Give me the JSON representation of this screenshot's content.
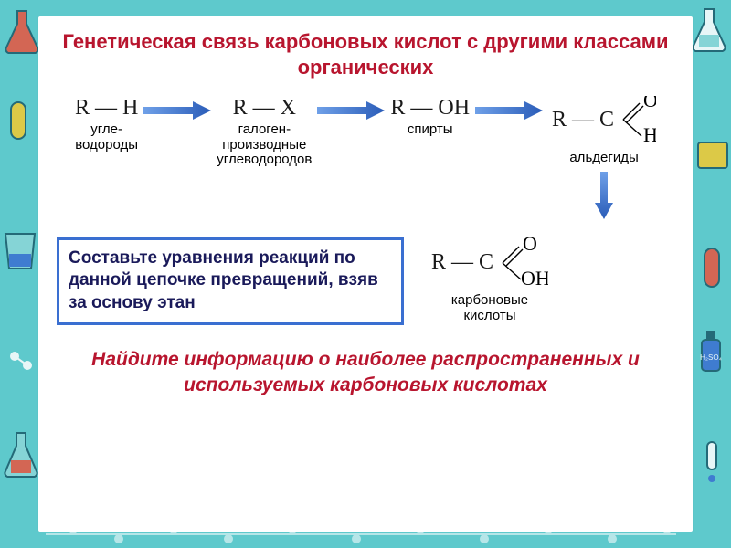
{
  "background": {
    "color": "#5ec9cc",
    "icon_colors": [
      "#ffffff",
      "#1a5a6a",
      "#e85540",
      "#f3c930",
      "#8cd6d8"
    ]
  },
  "title": {
    "text": "Генетическая связь карбоновых кислот с другими классами органических",
    "color": "#b8152e",
    "fontsize": 22
  },
  "chain": {
    "arrow_fill": "#3a6fd1",
    "formula_color": "#1a1a1a",
    "formula_fontsize": 24,
    "label_color": "#000000",
    "label_fontsize": 15,
    "nodes": [
      {
        "formula": "R — H",
        "label": "угле-\nводороды"
      },
      {
        "formula": "R — X",
        "label": "галоген-\nпроизводные\nуглеводородов"
      },
      {
        "formula": "R — OH",
        "label": "спирты"
      }
    ],
    "aldehyde": {
      "r": "R — C",
      "o": "O",
      "h": "H",
      "label": "альдегиды"
    },
    "acid": {
      "r": "R — C",
      "o": "O",
      "oh": "OH",
      "label": "карбоновые\nкислоты"
    }
  },
  "task_box": {
    "border_color": "#3a6fd1",
    "text_color": "#1a1a5a",
    "fontsize": 19,
    "text": "Составьте уравнения реакций по данной цепочке превращений, взяв за основу этан"
  },
  "bottom_task": {
    "color": "#b8152e",
    "fontsize": 21,
    "text": "Найдите информацию о наиболее распространенных и используемых карбоновых кислотах"
  }
}
